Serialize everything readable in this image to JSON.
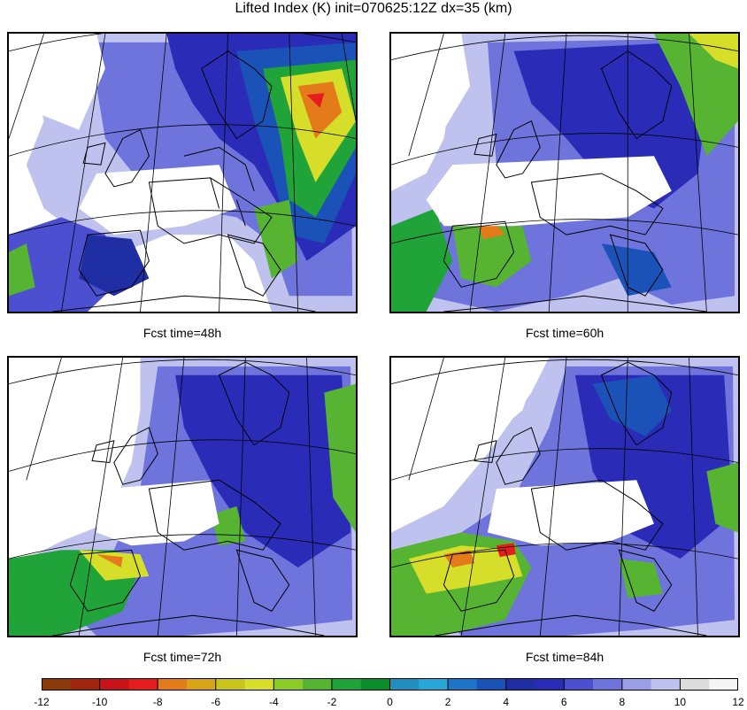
{
  "title": "Lifted Index (K) init=070625:12Z dx=35 (km)",
  "panels": [
    {
      "label": "Fcst time=48h"
    },
    {
      "label": "Fcst time=60h"
    },
    {
      "label": "Fcst time=72h"
    },
    {
      "label": "Fcst time=84h"
    }
  ],
  "colorbar": {
    "ticks": [
      "-12",
      "-10",
      "-8",
      "-6",
      "-4",
      "-2",
      "0",
      "2",
      "4",
      "6",
      "8",
      "10",
      "12"
    ],
    "bins": [
      {
        "from": -12,
        "to": -11,
        "color": "#8b3a0a"
      },
      {
        "from": -11,
        "to": -10,
        "color": "#a0250c"
      },
      {
        "from": -10,
        "to": -9,
        "color": "#c8121a"
      },
      {
        "from": -9,
        "to": -8,
        "color": "#e41c1c"
      },
      {
        "from": -8,
        "to": -7,
        "color": "#e37b1a"
      },
      {
        "from": -7,
        "to": -6,
        "color": "#d9a316"
      },
      {
        "from": -6,
        "to": -5,
        "color": "#c8c41c"
      },
      {
        "from": -5,
        "to": -4,
        "color": "#d7de2a"
      },
      {
        "from": -4,
        "to": -3,
        "color": "#8acb28"
      },
      {
        "from": -3,
        "to": -2,
        "color": "#57b432"
      },
      {
        "from": -2,
        "to": -1,
        "color": "#20a43a"
      },
      {
        "from": -1,
        "to": 0,
        "color": "#0a8c2a"
      },
      {
        "from": 0,
        "to": 1,
        "color": "#1f8fbf"
      },
      {
        "from": 1,
        "to": 2,
        "color": "#27a6d8"
      },
      {
        "from": 2,
        "to": 3,
        "color": "#1e74c9"
      },
      {
        "from": 3,
        "to": 4,
        "color": "#1a52b8"
      },
      {
        "from": 4,
        "to": 5,
        "color": "#1f2fa3"
      },
      {
        "from": 5,
        "to": 6,
        "color": "#2a2cb8"
      },
      {
        "from": 6,
        "to": 7,
        "color": "#4c4fd0"
      },
      {
        "from": 7,
        "to": 8,
        "color": "#6f73dc"
      },
      {
        "from": 8,
        "to": 9,
        "color": "#9b9ee6"
      },
      {
        "from": 9,
        "to": 10,
        "color": "#bfc2ee"
      },
      {
        "from": 10,
        "to": 11,
        "color": "#dcdcdc"
      },
      {
        "from": 11,
        "to": 12,
        "color": "#f4f4f4"
      }
    ]
  }
}
